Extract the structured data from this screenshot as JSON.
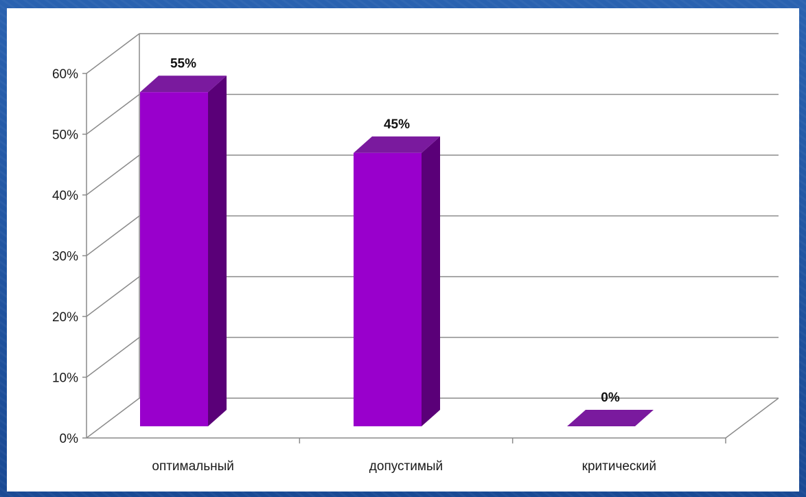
{
  "chart_data": {
    "type": "bar",
    "categories": [
      "оптимальный",
      "допустимый",
      "критический"
    ],
    "values": [
      55,
      45,
      0
    ],
    "data_labels": [
      "55%",
      "45%",
      "0%"
    ],
    "ylim": [
      0,
      60
    ],
    "ytick_labels": [
      "0%",
      "10%",
      "20%",
      "30%",
      "40%",
      "50%",
      "60%"
    ],
    "grid": true,
    "style": "3d-column",
    "colors": {
      "bar_front": "#9900cc",
      "bar_side": "#5a0078",
      "bar_top": "#7a1a9e",
      "grid": "#8a8a8a"
    }
  }
}
